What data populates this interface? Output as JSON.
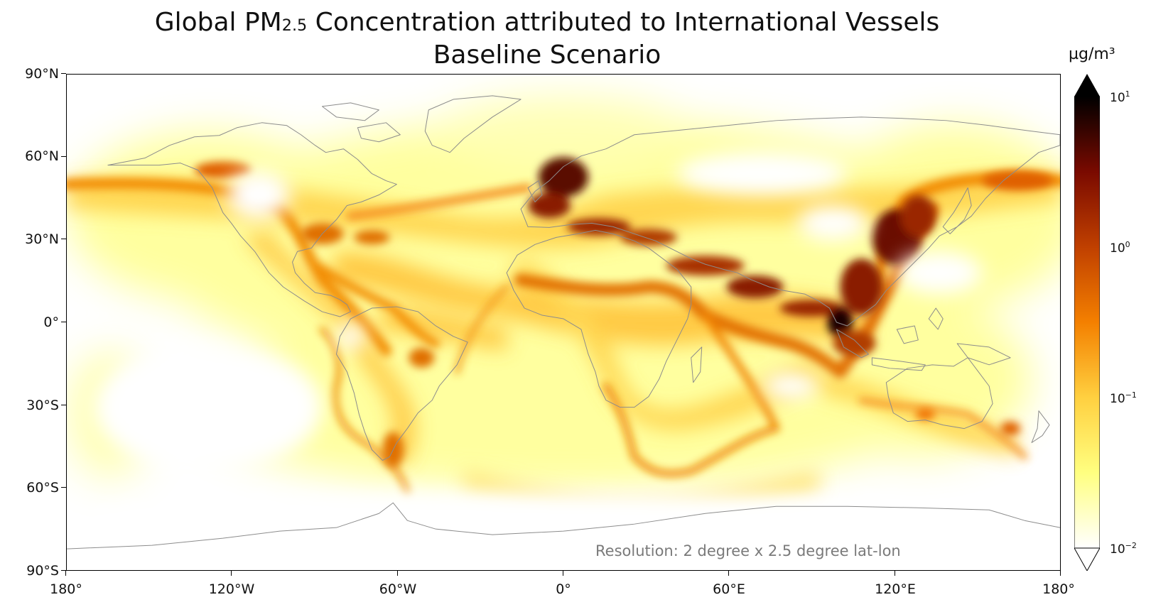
{
  "figure": {
    "title_prefix": "Global PM",
    "title_subscript": "2.5",
    "title_suffix": " Concentration attributed to International Vessels",
    "subtitle": "Baseline Scenario",
    "resolution_note": "Resolution: 2 degree x 2.5 degree lat-lon"
  },
  "map": {
    "projection": "equirectangular",
    "lon_range": [
      -180,
      180
    ],
    "lat_range": [
      -90,
      90
    ],
    "coastline_color": "#8c8c8c",
    "lat_ticks": [
      {
        "value": 90,
        "label": "90°N"
      },
      {
        "value": 60,
        "label": "60°N"
      },
      {
        "value": 30,
        "label": "30°N"
      },
      {
        "value": 0,
        "label": "0°"
      },
      {
        "value": -30,
        "label": "30°S"
      },
      {
        "value": -60,
        "label": "60°S"
      },
      {
        "value": -90,
        "label": "90°S"
      }
    ],
    "lon_ticks": [
      {
        "value": -180,
        "label": "180°"
      },
      {
        "value": -120,
        "label": "120°W"
      },
      {
        "value": -60,
        "label": "60°W"
      },
      {
        "value": 0,
        "label": "0°"
      },
      {
        "value": 60,
        "label": "60°E"
      },
      {
        "value": 120,
        "label": "120°E"
      },
      {
        "value": 180,
        "label": "180°"
      }
    ],
    "concentration_hotspots": [
      {
        "region": "north-pacific-shipping-lane",
        "level": 0.45
      },
      {
        "region": "north-atlantic-shipping-lane",
        "level": 0.35
      },
      {
        "region": "north-sea-english-channel",
        "level": 3.0
      },
      {
        "region": "mediterranean",
        "level": 1.5
      },
      {
        "region": "red-sea-arabian-sea",
        "level": 1.2
      },
      {
        "region": "bay-of-bengal-india-coast",
        "level": 1.2
      },
      {
        "region": "strait-of-malacca",
        "level": 5.0
      },
      {
        "region": "south-china-sea",
        "level": 1.0
      },
      {
        "region": "east-china-sea-japan",
        "level": 2.0
      },
      {
        "region": "gulf-of-mexico-caribbean",
        "level": 0.4
      },
      {
        "region": "west-coast-north-america",
        "level": 0.3
      },
      {
        "region": "west-coast-south-america",
        "level": 0.3
      },
      {
        "region": "southern-africa-route",
        "level": 0.3
      }
    ]
  },
  "colorbar": {
    "unit": "µg/m³",
    "scale": "log",
    "range": [
      0.01,
      10
    ],
    "extend": "both",
    "colormap": "afmhot_r",
    "stops": [
      "#ffffff",
      "#ffff80",
      "#ffd040",
      "#f48000",
      "#c04000",
      "#7a0a00",
      "#000000"
    ],
    "ticks": [
      {
        "value": 10,
        "base": "10",
        "exp": "1"
      },
      {
        "value": 1,
        "base": "10",
        "exp": "0"
      },
      {
        "value": 0.1,
        "base": "10",
        "exp": "−1"
      },
      {
        "value": 0.01,
        "base": "10",
        "exp": "−2"
      }
    ]
  },
  "chart_data": {
    "type": "heatmap",
    "title": "Global PM₂.₅ Concentration attributed to International Vessels",
    "subtitle": "Baseline Scenario",
    "xlim": [
      -180,
      180
    ],
    "ylim": [
      -90,
      90
    ],
    "color_range": [
      0.01,
      10
    ],
    "color_scale": "log",
    "unit": "µg/m³"
  }
}
